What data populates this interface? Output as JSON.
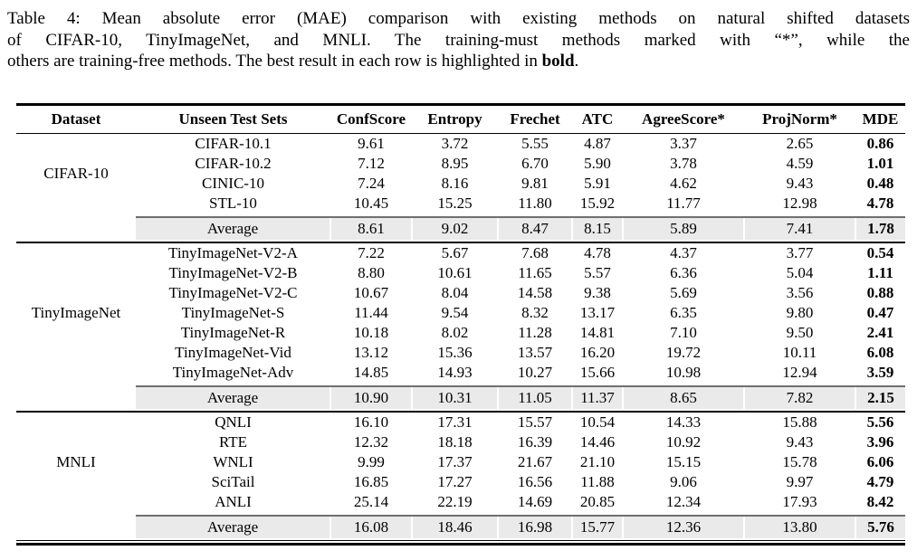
{
  "caption": {
    "line1": "Table 4: Mean absolute error (MAE) comparison with existing methods on natural shifted datasets",
    "line2": "of CIFAR-10, TinyImageNet, and MNLI. The training-must methods marked with “*”, while the",
    "line3_text": "others are training-free methods. The best result in each row is highlighted in ",
    "line3_bold": "bold",
    "line3_period": "."
  },
  "table": {
    "columns": [
      "Dataset",
      "Unseen Test Sets",
      "ConfScore",
      "Entropy",
      "Frechet",
      "ATC",
      "AgreeScore*",
      "ProjNorm*",
      "MDE"
    ],
    "sections": [
      {
        "dataset": "CIFAR-10",
        "rows": [
          {
            "test_set": "CIFAR-10.1",
            "values": [
              "9.61",
              "3.72",
              "5.55",
              "4.87",
              "3.37",
              "2.65"
            ],
            "mde": "0.86"
          },
          {
            "test_set": "CIFAR-10.2",
            "values": [
              "7.12",
              "8.95",
              "6.70",
              "5.90",
              "3.78",
              "4.59"
            ],
            "mde": "1.01"
          },
          {
            "test_set": "CINIC-10",
            "values": [
              "7.24",
              "8.16",
              "9.81",
              "5.91",
              "4.62",
              "9.43"
            ],
            "mde": "0.48"
          },
          {
            "test_set": "STL-10",
            "values": [
              "10.45",
              "15.25",
              "11.80",
              "15.92",
              "11.77",
              "12.98"
            ],
            "mde": "4.78"
          }
        ],
        "average": {
          "label": "Average",
          "values": [
            "8.61",
            "9.02",
            "8.47",
            "8.15",
            "5.89",
            "7.41"
          ],
          "mde": "1.78"
        }
      },
      {
        "dataset": "TinyImageNet",
        "rows": [
          {
            "test_set": "TinyImageNet-V2-A",
            "values": [
              "7.22",
              "5.67",
              "7.68",
              "4.78",
              "4.37",
              "3.77"
            ],
            "mde": "0.54"
          },
          {
            "test_set": "TinyImageNet-V2-B",
            "values": [
              "8.80",
              "10.61",
              "11.65",
              "5.57",
              "6.36",
              "5.04"
            ],
            "mde": "1.11"
          },
          {
            "test_set": "TinyImageNet-V2-C",
            "values": [
              "10.67",
              "8.04",
              "14.58",
              "9.38",
              "5.69",
              "3.56"
            ],
            "mde": "0.88"
          },
          {
            "test_set": "TinyImageNet-S",
            "values": [
              "11.44",
              "9.54",
              "8.32",
              "13.17",
              "6.35",
              "9.80"
            ],
            "mde": "0.47"
          },
          {
            "test_set": "TinyImageNet-R",
            "values": [
              "10.18",
              "8.02",
              "11.28",
              "14.81",
              "7.10",
              "9.50"
            ],
            "mde": "2.41"
          },
          {
            "test_set": "TinyImageNet-Vid",
            "values": [
              "13.12",
              "15.36",
              "13.57",
              "16.20",
              "19.72",
              "10.11"
            ],
            "mde": "6.08"
          },
          {
            "test_set": "TinyImageNet-Adv",
            "values": [
              "14.85",
              "14.93",
              "10.27",
              "15.66",
              "10.98",
              "12.94"
            ],
            "mde": "3.59"
          }
        ],
        "average": {
          "label": "Average",
          "values": [
            "10.90",
            "10.31",
            "11.05",
            "11.37",
            "8.65",
            "7.82"
          ],
          "mde": "2.15"
        }
      },
      {
        "dataset": "MNLI",
        "rows": [
          {
            "test_set": "QNLI",
            "values": [
              "16.10",
              "17.31",
              "15.57",
              "10.54",
              "14.33",
              "15.88"
            ],
            "mde": "5.56"
          },
          {
            "test_set": "RTE",
            "values": [
              "12.32",
              "18.18",
              "16.39",
              "14.46",
              "10.92",
              "9.43"
            ],
            "mde": "3.96"
          },
          {
            "test_set": "WNLI",
            "values": [
              "9.99",
              "17.37",
              "21.67",
              "21.10",
              "15.15",
              "15.78"
            ],
            "mde": "6.06"
          },
          {
            "test_set": "SciTail",
            "values": [
              "16.85",
              "17.27",
              "16.56",
              "11.88",
              "9.06",
              "9.97"
            ],
            "mde": "4.79"
          },
          {
            "test_set": "ANLI",
            "values": [
              "25.14",
              "22.19",
              "14.69",
              "20.85",
              "12.34",
              "17.93"
            ],
            "mde": "8.42"
          }
        ],
        "average": {
          "label": "Average",
          "values": [
            "16.08",
            "18.46",
            "16.98",
            "15.77",
            "12.36",
            "13.80"
          ],
          "mde": "5.76"
        }
      }
    ]
  },
  "colors": {
    "average_row_bg": "#eaeaea",
    "partial_rule": "#6f6f6f",
    "table_rule": "#000000",
    "text": "#000000",
    "background": "#ffffff"
  }
}
